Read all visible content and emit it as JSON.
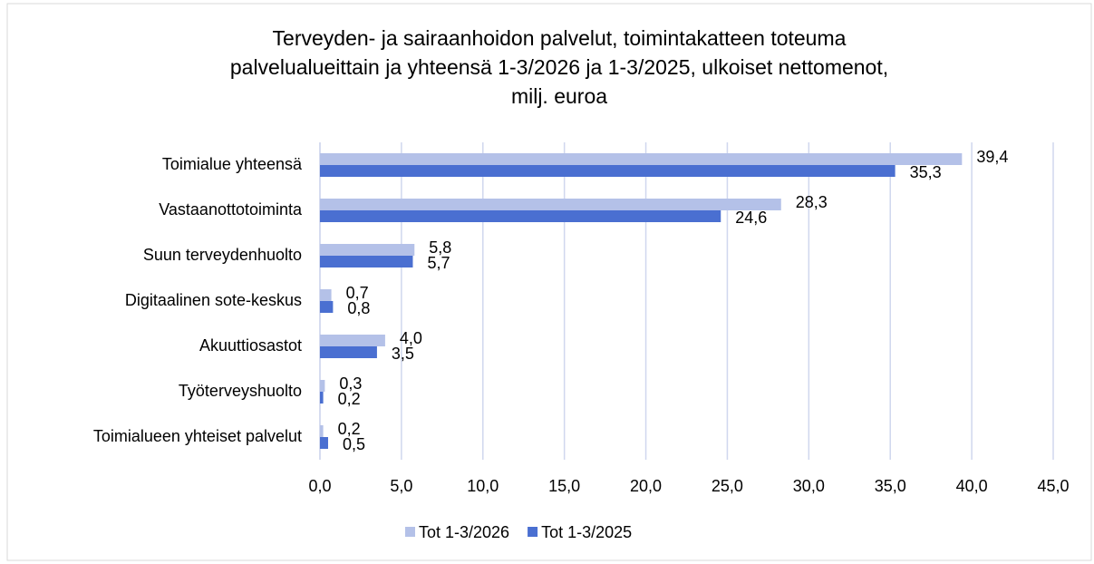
{
  "chart_data": {
    "type": "bar",
    "orientation": "horizontal",
    "title": [
      "Terveyden- ja sairaanhoidon palvelut, toimintakatteen toteuma",
      "palvelualueittain ja yhteensä 1-3/2026 ja 1-3/2025, ulkoiset nettomenot,",
      "milj. euroa"
    ],
    "categories": [
      "Toimialue yhteensä",
      "Vastaanottotoiminta",
      "Suun terveydenhuolto",
      "Digitaalinen sote-keskus",
      "Akuuttiosastot",
      "Työterveyshuolto",
      "Toimialueen yhteiset palvelut"
    ],
    "series": [
      {
        "name": "Tot 1-3/2026",
        "color": "#b4c1e8",
        "values": [
          39.4,
          28.3,
          5.8,
          0.7,
          4.0,
          0.3,
          0.2
        ],
        "value_labels": [
          "39,4",
          "28,3",
          "5,8",
          "0,7",
          "4,0",
          "0,3",
          "0,2"
        ]
      },
      {
        "name": "Tot 1-3/2025",
        "color": "#4a6fd1",
        "values": [
          35.3,
          24.6,
          5.7,
          0.8,
          3.5,
          0.2,
          0.5
        ],
        "value_labels": [
          "35,3",
          "24,6",
          "5,7",
          "0,8",
          "3,5",
          "0,2",
          "0,5"
        ]
      }
    ],
    "xlim": [
      0,
      45
    ],
    "xticks": [
      {
        "value": 0,
        "label": "0,0"
      },
      {
        "value": 5,
        "label": "5,0"
      },
      {
        "value": 10,
        "label": "10,0"
      },
      {
        "value": 15,
        "label": "15,0"
      },
      {
        "value": 20,
        "label": "20,0"
      },
      {
        "value": 25,
        "label": "25,0"
      },
      {
        "value": 30,
        "label": "30,0"
      },
      {
        "value": 35,
        "label": "35,0"
      },
      {
        "value": 40,
        "label": "40,0"
      },
      {
        "value": 45,
        "label": "45,0"
      }
    ],
    "grid": true,
    "legend": "bottom"
  }
}
